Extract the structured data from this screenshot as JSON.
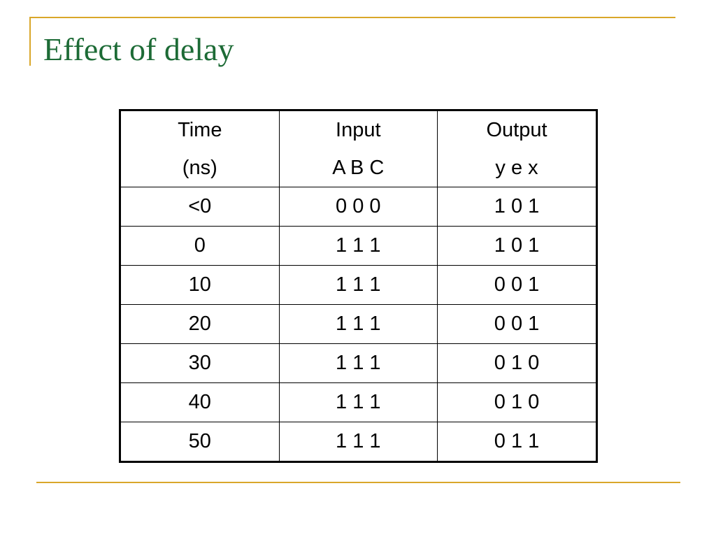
{
  "header": {
    "title": "Effect of delay"
  },
  "table": {
    "header": [
      [
        "Time",
        "(ns)"
      ],
      [
        "Input",
        "A B C"
      ],
      [
        "Output",
        "y e x"
      ]
    ],
    "rows": [
      [
        "<0",
        "0 0 0",
        "1 0 1"
      ],
      [
        "0",
        "1 1 1",
        "1 0 1"
      ],
      [
        "10",
        "1 1 1",
        "0 0 1"
      ],
      [
        "20",
        "1 1 1",
        "0 0 1"
      ],
      [
        "30",
        "1 1 1",
        "0 1 0"
      ],
      [
        "40",
        "1 1 1",
        "0 1 0"
      ],
      [
        "50",
        "1 1 1",
        "0 1 1"
      ]
    ]
  }
}
